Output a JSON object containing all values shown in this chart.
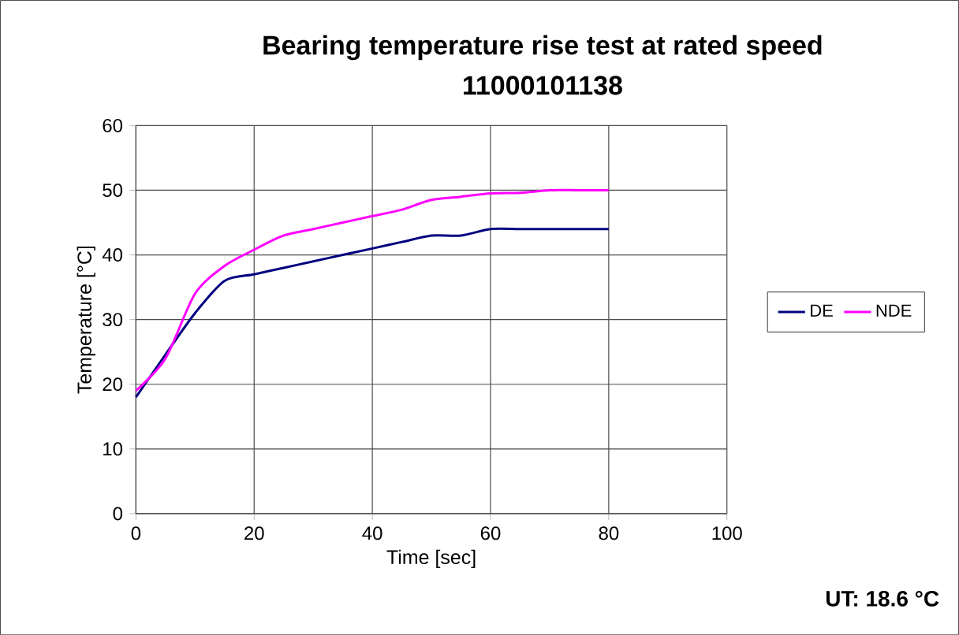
{
  "chart_data": {
    "type": "line",
    "title": "Bearing temperature rise test at rated speed",
    "subtitle": "11000101138",
    "xlabel": "Time [sec]",
    "ylabel": "Temperature [°C]",
    "xlim": [
      0,
      100
    ],
    "xticks": [
      0,
      20,
      40,
      60,
      80,
      100
    ],
    "ylim": [
      0,
      60
    ],
    "yticks": [
      0,
      10,
      20,
      30,
      40,
      50,
      60
    ],
    "grid": true,
    "legend": "right",
    "marker": "none",
    "x": [
      0,
      5,
      10,
      15,
      20,
      25,
      30,
      35,
      40,
      45,
      50,
      55,
      60,
      65,
      70,
      75,
      80
    ],
    "series": [
      {
        "name": "DE",
        "color": "#000080",
        "values": [
          18,
          24.6,
          31,
          36,
          37,
          38,
          39,
          40,
          41,
          42,
          43,
          43,
          44,
          44,
          44,
          44,
          44
        ]
      },
      {
        "name": "NDE",
        "color": "#ff00ff",
        "values": [
          19,
          24,
          34,
          38.3,
          40.8,
          43,
          44,
          45,
          46,
          47,
          48.5,
          49,
          49.5,
          49.6,
          50,
          50,
          50
        ]
      }
    ],
    "annotations": [
      "UT: 18.6 °C"
    ]
  }
}
